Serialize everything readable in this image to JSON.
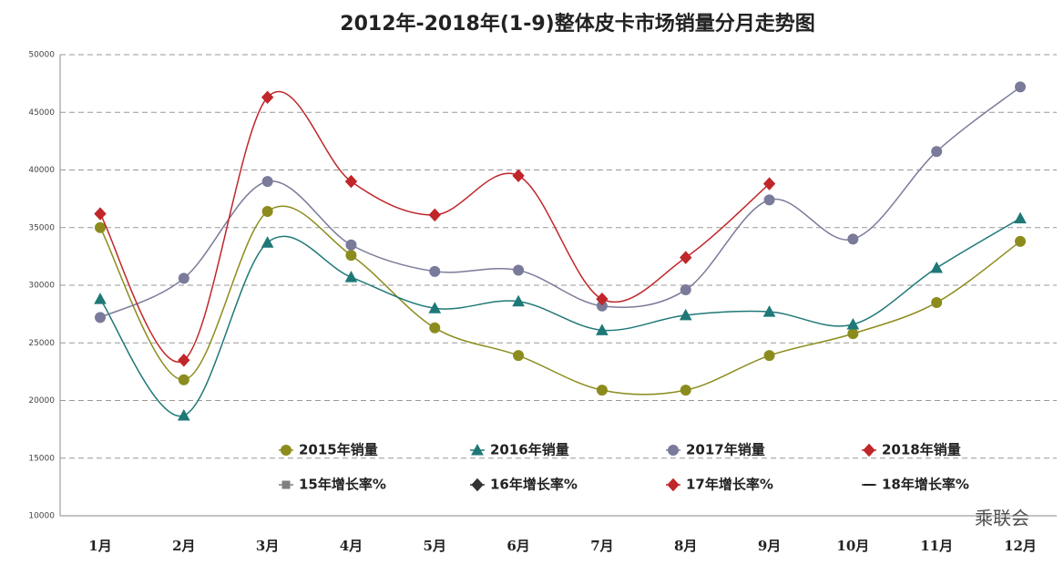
{
  "chart_data": {
    "type": "line",
    "title": "2012年-2018年(1-9)整体皮卡市场销量分月走势图",
    "categories": [
      "1月",
      "2月",
      "3月",
      "4月",
      "5月",
      "6月",
      "7月",
      "8月",
      "9月",
      "10月",
      "11月",
      "12月"
    ],
    "ylim": [
      10000,
      50000
    ],
    "yticks": [
      10000,
      15000,
      20000,
      25000,
      30000,
      35000,
      40000,
      45000,
      50000
    ],
    "grid": true,
    "smooth": true,
    "series": [
      {
        "name": "2015年销量",
        "color": "#8c8c1e",
        "marker": "circle",
        "values": [
          35000,
          21800,
          36400,
          32600,
          26300,
          23900,
          20900,
          20900,
          23900,
          25800,
          28500,
          33800
        ]
      },
      {
        "name": "2016年销量",
        "color": "#1f7878",
        "marker": "triangle",
        "values": [
          28800,
          18700,
          33700,
          30700,
          28000,
          28600,
          26100,
          27400,
          27700,
          26600,
          31500,
          35800
        ]
      },
      {
        "name": "2017年销量",
        "color": "#7a7a9a",
        "marker": "circle",
        "values": [
          27200,
          30600,
          39000,
          33500,
          31200,
          31300,
          28200,
          29600,
          37400,
          34000,
          41600,
          47200
        ]
      },
      {
        "name": "2018年销量",
        "color": "#c0262a",
        "marker": "diamond",
        "values": [
          36200,
          23500,
          46300,
          39000,
          36100,
          39500,
          28800,
          32400,
          38800,
          null,
          null,
          null
        ]
      },
      {
        "name": "15年增长率%",
        "color": "#7f7f7f",
        "marker": "square",
        "values": [
          null,
          null,
          null,
          null,
          null,
          null,
          null,
          null,
          null,
          null,
          null,
          null
        ]
      },
      {
        "name": "16年增长率%",
        "color": "#333333",
        "marker": "diamond",
        "values": [
          null,
          null,
          null,
          null,
          null,
          null,
          null,
          null,
          null,
          null,
          null,
          null
        ]
      },
      {
        "name": "17年增长率%",
        "color": "#c0262a",
        "marker": "diamond",
        "values": [
          null,
          null,
          null,
          null,
          null,
          null,
          null,
          null,
          null,
          null,
          null,
          null
        ]
      },
      {
        "name": "18年增长率%",
        "color": "#222222",
        "marker": "dash",
        "values": [
          null,
          null,
          null,
          null,
          null,
          null,
          null,
          null,
          null,
          null,
          null,
          null
        ]
      }
    ],
    "watermark": "乘联会"
  }
}
